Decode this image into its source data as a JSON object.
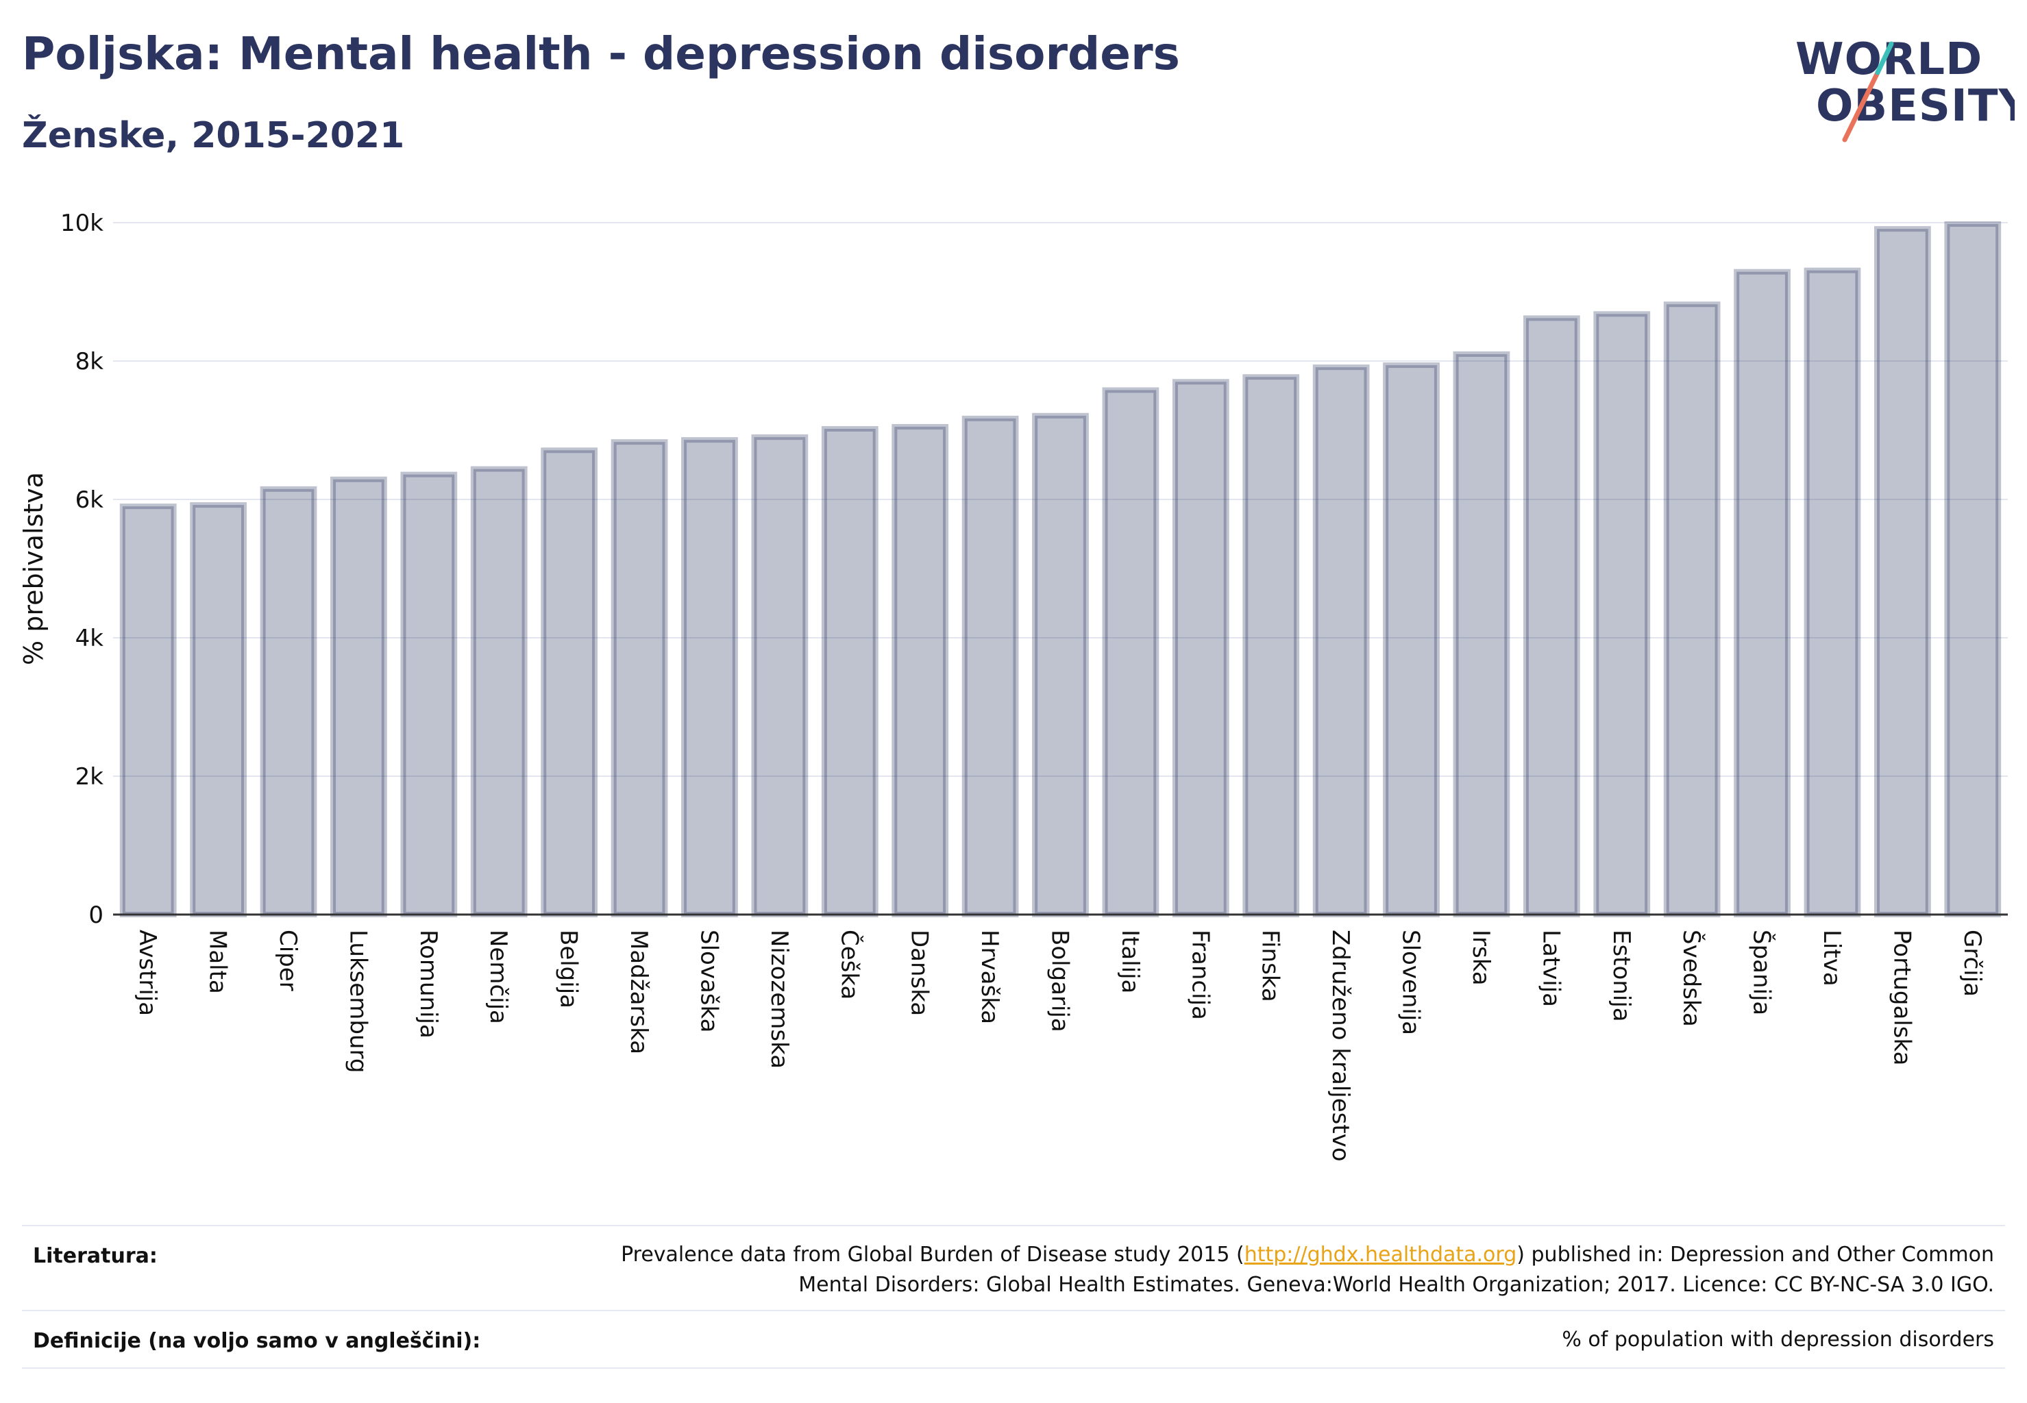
{
  "header": {
    "title": "Poljska: Mental health - depression disorders",
    "subtitle": "Ženske, 2015-2021"
  },
  "logo": {
    "line1": "WORLD",
    "line2": "OBESITY"
  },
  "chart_data": {
    "type": "bar",
    "ylabel": "% prebivalstva",
    "ylim": [
      0,
      10000
    ],
    "yticks": [
      0,
      2000,
      4000,
      6000,
      8000,
      10000
    ],
    "ytick_labels": [
      "0",
      "2k",
      "4k",
      "6k",
      "8k",
      "10k"
    ],
    "grid": true,
    "bar_color": "#2b3560",
    "categories": [
      "Avstrija",
      "Malta",
      "Ciper",
      "Luksemburg",
      "Romunija",
      "Nemčija",
      "Belgija",
      "Madžarska",
      "Slovaška",
      "Nizozemska",
      "Češka",
      "Danska",
      "Hrvaška",
      "Bolgarija",
      "Italija",
      "Francija",
      "Finska",
      "Združeno kraljestvo",
      "Slovenija",
      "Irska",
      "Latvija",
      "Estonija",
      "Švedska",
      "Španija",
      "Litva",
      "Portugalska",
      "Grčija"
    ],
    "values": [
      5900,
      5920,
      6150,
      6290,
      6360,
      6440,
      6710,
      6830,
      6860,
      6900,
      7020,
      7050,
      7170,
      7210,
      7580,
      7700,
      7770,
      7910,
      7940,
      8100,
      8620,
      8680,
      8820,
      9290,
      9310,
      9910,
      9980
    ]
  },
  "footer": {
    "sources_label": "Literatura:",
    "sources_text_before": "Prevalence data from Global Burden of Disease study 2015 (",
    "sources_link": "http://ghdx.healthdata.org",
    "sources_text_after": ") published in: Depression and Other Common",
    "sources_text_line2": "Mental Disorders: Global Health Estimates. Geneva:World Health Organization; 2017. Licence: CC BY-NC-SA 3.0 IGO.",
    "definitions_label": "Definicije (na voljo samo v angleščini):",
    "definitions_text": "% of population with depression disorders"
  }
}
